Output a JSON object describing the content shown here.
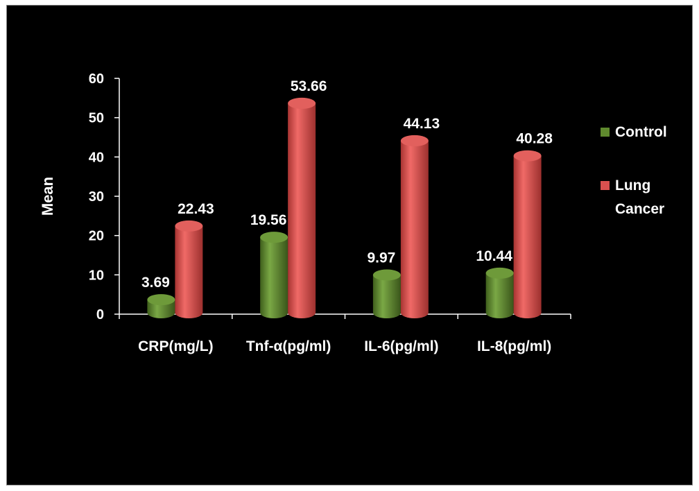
{
  "chart_data": {
    "type": "bar",
    "title": "",
    "xlabel": "",
    "ylabel": "Mean",
    "ylim": [
      0,
      60
    ],
    "yticks": [
      0,
      10,
      20,
      30,
      40,
      50,
      60
    ],
    "categories": [
      "CRP(mg/L)",
      "Tnf-α(pg/ml)",
      "IL-6(pg/ml)",
      "IL-8(pg/ml)"
    ],
    "series": [
      {
        "name": "Control",
        "values": [
          3.69,
          19.56,
          9.97,
          10.44
        ],
        "color": "#5f8a2e",
        "labels": [
          "3.69",
          "19.56",
          "9.97",
          "10.44"
        ]
      },
      {
        "name": "Lung Cancer",
        "values": [
          22.43,
          53.66,
          44.13,
          40.28
        ],
        "color": "#d9504f",
        "labels": [
          "22.43",
          "53.66",
          "44.13",
          "40.28"
        ]
      }
    ],
    "legend": {
      "placement": "right",
      "entries": [
        {
          "lines": [
            "Control"
          ]
        },
        {
          "lines": [
            "Lung",
            "Cancer"
          ]
        }
      ]
    },
    "grid": false,
    "style": "3d-cylinder",
    "background": "#000000"
  }
}
